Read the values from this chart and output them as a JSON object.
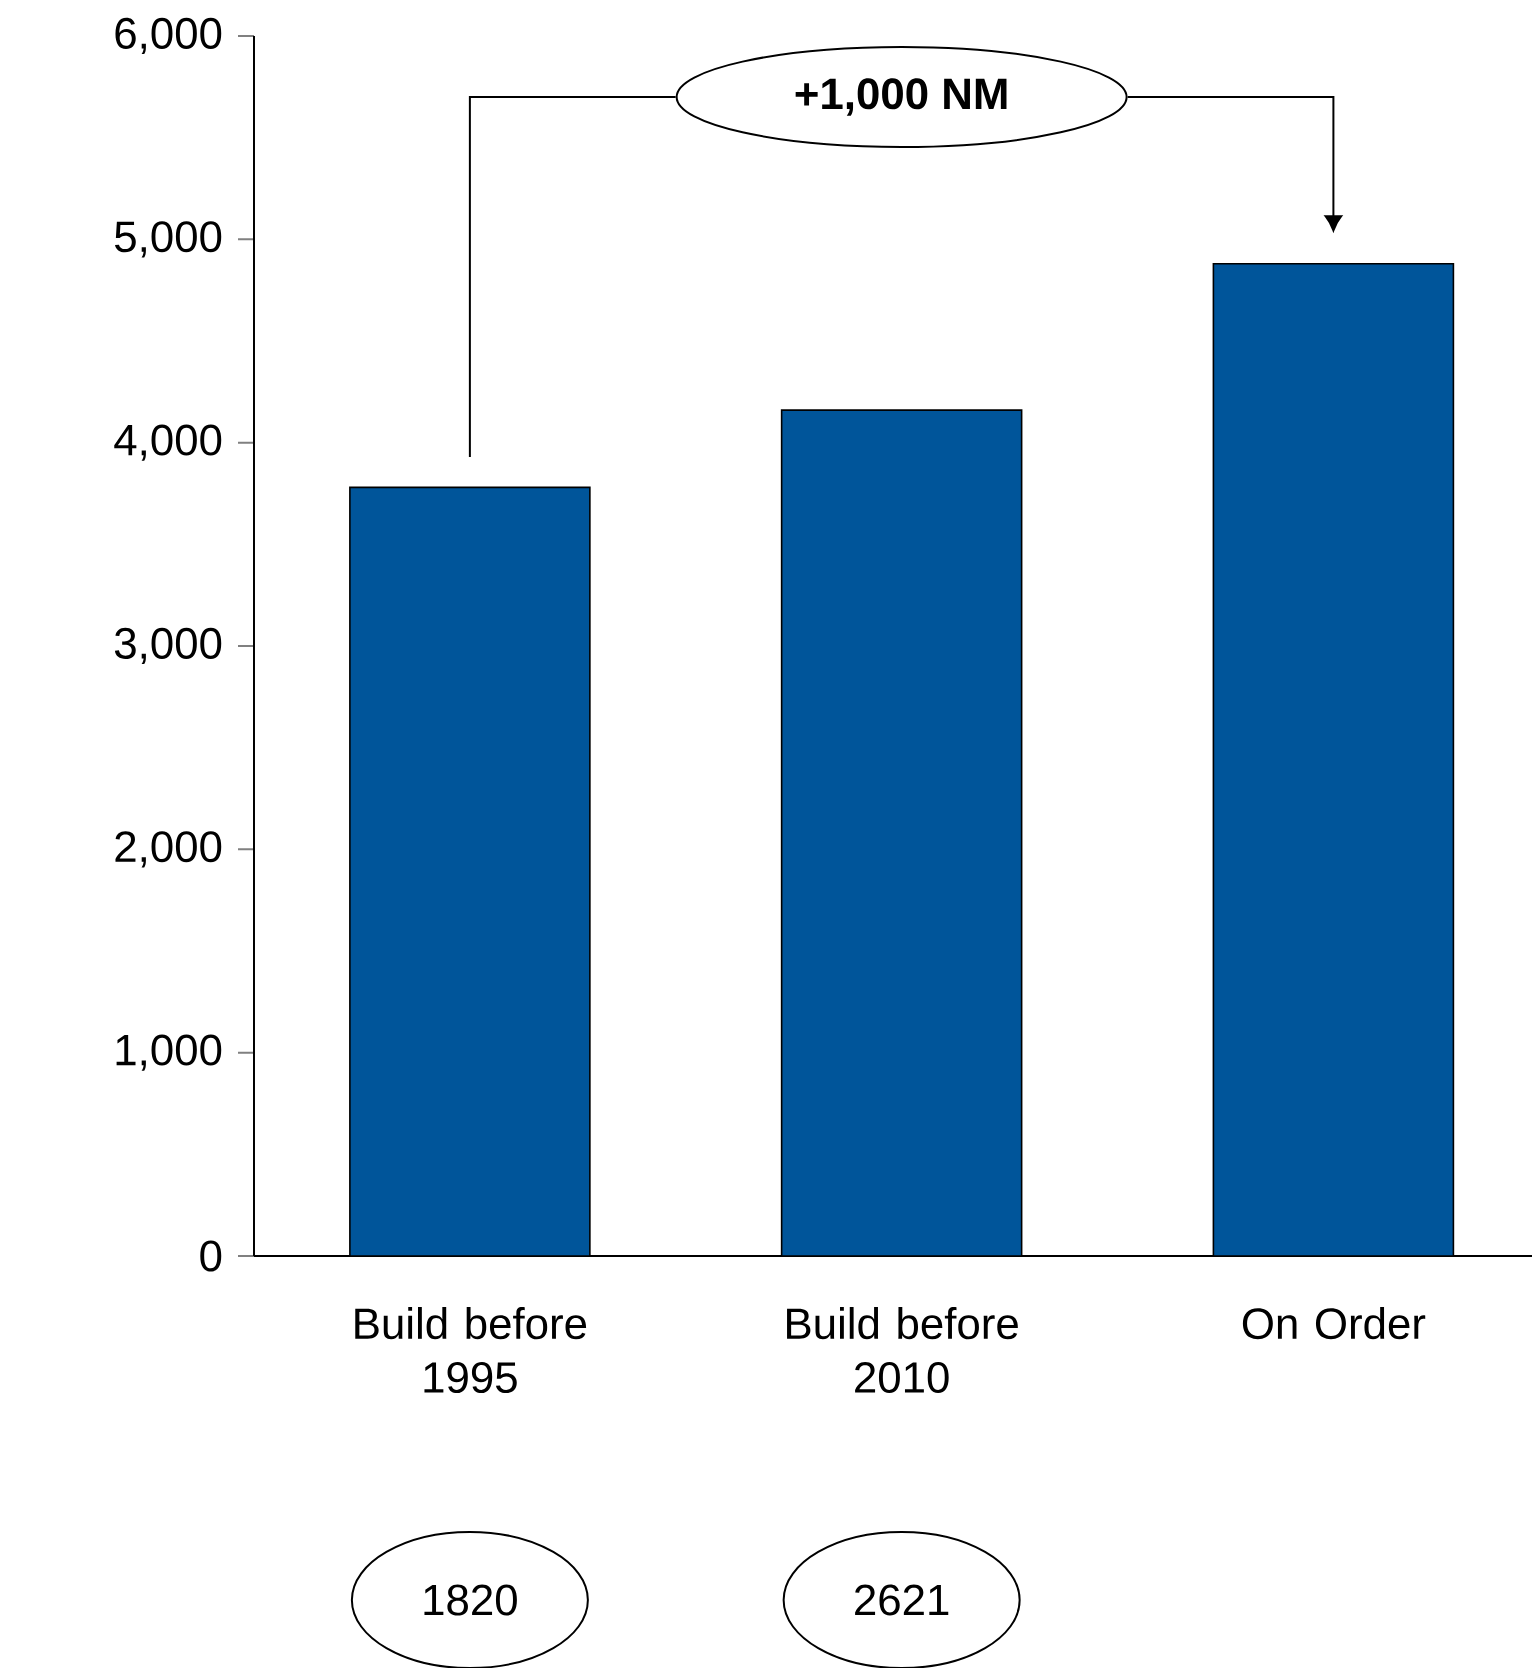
{
  "chart_data": {
    "type": "bar",
    "categories": [
      "Build before 1995",
      "Build before 2010",
      "On Order"
    ],
    "values": [
      3780,
      4160,
      4880
    ],
    "color": "#00559a",
    "ylim": [
      0,
      6000
    ],
    "yticks": [
      {
        "value": 0,
        "label": "0"
      },
      {
        "value": 1000,
        "label": "1,000"
      },
      {
        "value": 2000,
        "label": "2,000"
      },
      {
        "value": 3000,
        "label": "3,000"
      },
      {
        "value": 4000,
        "label": "4,000"
      },
      {
        "value": 5000,
        "label": "5,000"
      },
      {
        "value": 6000,
        "label": "6,000"
      }
    ],
    "annotations": [
      "+1,000 NM",
      "1820",
      "2621"
    ],
    "grid": false
  }
}
